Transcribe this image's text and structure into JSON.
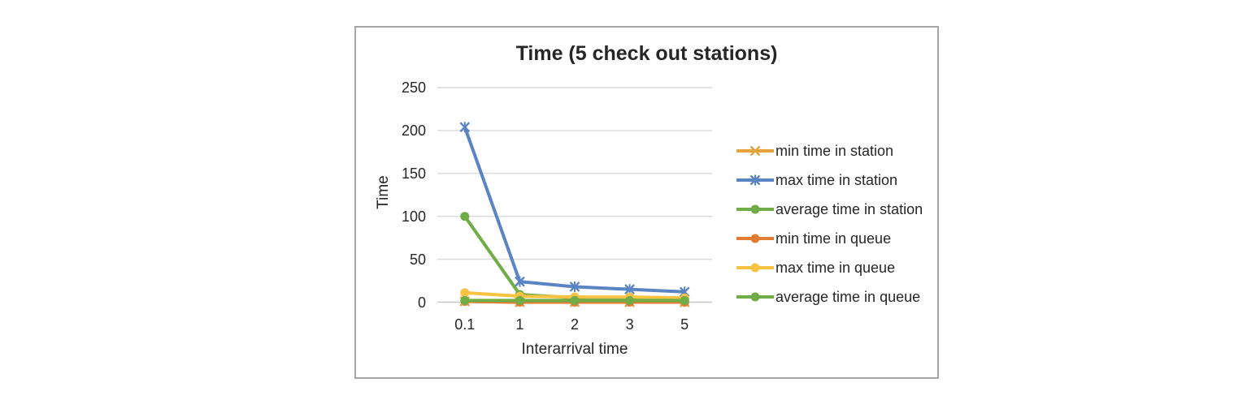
{
  "page": {
    "background": "#ffffff"
  },
  "chart": {
    "frame_border_color": "#a6a6a6",
    "gridline_color": "#d9d9d9",
    "axis_line_color": "#c6c6c6",
    "text_color": "#262626"
  },
  "chart_data": {
    "type": "line",
    "title": "Time (5 check out stations)",
    "xlabel": "Interarrival time",
    "ylabel": "Time",
    "categories": [
      "0.1",
      "1",
      "2",
      "3",
      "5"
    ],
    "yticks": [
      0,
      50,
      100,
      150,
      200,
      250
    ],
    "ylim": [
      0,
      250
    ],
    "grid": true,
    "legend_position": "right",
    "series": [
      {
        "name": "min time in station",
        "color": "#e5a33d",
        "marker": "x",
        "values": [
          1,
          0,
          0,
          0,
          0
        ]
      },
      {
        "name": "max time in station",
        "color": "#5b84c4",
        "marker": "star",
        "values": [
          204,
          24,
          18,
          15,
          12
        ]
      },
      {
        "name": "average time in station",
        "color": "#70ad47",
        "marker": "circle",
        "values": [
          100,
          9,
          5,
          4,
          3
        ]
      },
      {
        "name": "min time in queue",
        "color": "#e37c33",
        "marker": "circle",
        "values": [
          1,
          0,
          0,
          0,
          0
        ]
      },
      {
        "name": "max time in queue",
        "color": "#f7c242",
        "marker": "circle",
        "values": [
          11,
          7,
          6,
          6,
          5
        ]
      },
      {
        "name": "average time in queue",
        "color": "#70ad47",
        "marker": "circle",
        "values": [
          2,
          2,
          2,
          2,
          2
        ]
      }
    ]
  }
}
